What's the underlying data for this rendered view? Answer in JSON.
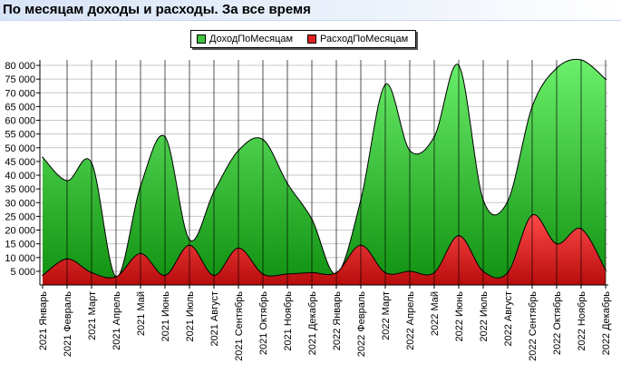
{
  "header": {
    "title": "По месяцам доходы и расходы. За все время"
  },
  "chart_data": {
    "type": "area",
    "title": "По месяцам доходы и расходы. За все время",
    "xlabel": "",
    "ylabel": "",
    "ylim": [
      0,
      82000
    ],
    "yticks": [
      5000,
      10000,
      15000,
      20000,
      25000,
      30000,
      35000,
      40000,
      45000,
      50000,
      55000,
      60000,
      65000,
      70000,
      75000,
      80000
    ],
    "ytick_labels": [
      "5 000",
      "10 000",
      "15 000",
      "20 000",
      "25 000",
      "30 000",
      "35 000",
      "40 000",
      "45 000",
      "50 000",
      "55 000",
      "60 000",
      "65 000",
      "70 000",
      "75 000",
      "80 000"
    ],
    "grid": true,
    "legend_position": "top-center",
    "categories": [
      "2021 Январь",
      "2021 Февраль",
      "2021 Март",
      "2021 Апрель",
      "2021 Май",
      "2021 Июнь",
      "2021 Июль",
      "2021 Август",
      "2021 Сентябрь",
      "2021 Октябрь",
      "2021 Ноябрь",
      "2021 Декабрь",
      "2022 Январь",
      "2022 Февраль",
      "2022 Март",
      "2022 Апрель",
      "2022 Май",
      "2022 Июнь",
      "2022 Июль",
      "2022 Август",
      "2022 Сентябрь",
      "2022 Октябрь",
      "2022 Ноябрь",
      "2022 Декабрь"
    ],
    "series": [
      {
        "name": "ДоходПоМесяцам",
        "color": "#4cd44c",
        "values": [
          46500,
          38000,
          44500,
          3000,
          36000,
          54000,
          16500,
          34000,
          49000,
          53000,
          37000,
          24000,
          4000,
          31000,
          73000,
          49000,
          54000,
          80000,
          31000,
          30500,
          65000,
          79000,
          82000,
          75000
        ]
      },
      {
        "name": "РасходПоМесяцам",
        "color": "#e02020",
        "values": [
          3500,
          9500,
          4500,
          3000,
          11500,
          3500,
          14500,
          3500,
          13500,
          4000,
          4000,
          4500,
          4500,
          14500,
          4500,
          5000,
          4500,
          18000,
          5000,
          4500,
          25500,
          15000,
          20500,
          5500
        ]
      }
    ]
  }
}
